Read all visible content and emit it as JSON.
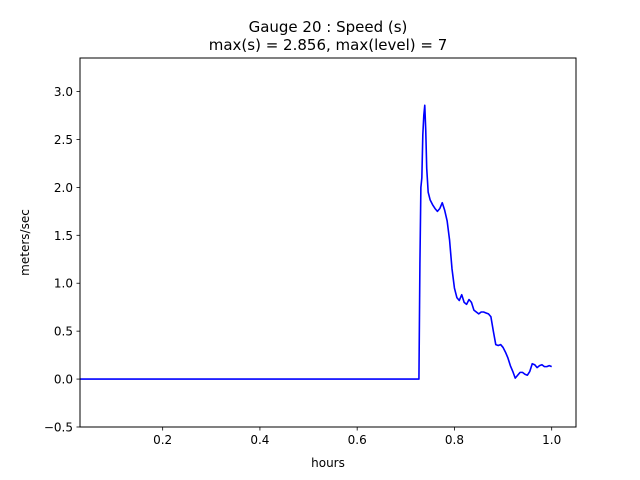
{
  "chart_data": {
    "type": "line",
    "title_line1": "Gauge 20 : Speed (s)",
    "title_line2": "max(s) =   2.856,    max(level) = 7",
    "xlabel": "hours",
    "ylabel": "meters/sec",
    "xlim": [
      0.03,
      1.05
    ],
    "ylim": [
      -0.5,
      3.35
    ],
    "xticks": [
      0.2,
      0.4,
      0.6,
      0.8,
      1.0
    ],
    "xtick_labels": [
      "0.2",
      "0.4",
      "0.6",
      "0.8",
      "1.0"
    ],
    "yticks": [
      -0.5,
      0.0,
      0.5,
      1.0,
      1.5,
      2.0,
      2.5,
      3.0
    ],
    "ytick_labels": [
      "−0.5",
      "0.0",
      "0.5",
      "1.0",
      "1.5",
      "2.0",
      "2.5",
      "3.0"
    ],
    "grid": false,
    "legend": "none",
    "series": [
      {
        "color": "#0000ff",
        "x": [
          0.03,
          0.2,
          0.4,
          0.6,
          0.727,
          0.729,
          0.731,
          0.733,
          0.735,
          0.737,
          0.739,
          0.741,
          0.743,
          0.746,
          0.75,
          0.755,
          0.76,
          0.765,
          0.77,
          0.775,
          0.78,
          0.785,
          0.79,
          0.795,
          0.8,
          0.805,
          0.81,
          0.815,
          0.82,
          0.825,
          0.83,
          0.835,
          0.84,
          0.845,
          0.85,
          0.855,
          0.86,
          0.865,
          0.87,
          0.875,
          0.88,
          0.885,
          0.89,
          0.895,
          0.9,
          0.905,
          0.91,
          0.915,
          0.92,
          0.925,
          0.93,
          0.935,
          0.94,
          0.945,
          0.95,
          0.955,
          0.96,
          0.965,
          0.97,
          0.975,
          0.98,
          0.985,
          0.99,
          0.995,
          1.0
        ],
        "y": [
          0.0,
          0.0,
          0.0,
          0.0,
          0.0,
          1.2,
          2.0,
          2.1,
          2.55,
          2.75,
          2.856,
          2.6,
          2.2,
          1.95,
          1.87,
          1.82,
          1.78,
          1.75,
          1.78,
          1.84,
          1.76,
          1.65,
          1.45,
          1.15,
          0.95,
          0.85,
          0.82,
          0.88,
          0.8,
          0.78,
          0.83,
          0.8,
          0.72,
          0.7,
          0.68,
          0.7,
          0.7,
          0.69,
          0.68,
          0.65,
          0.5,
          0.36,
          0.35,
          0.36,
          0.33,
          0.28,
          0.22,
          0.14,
          0.08,
          0.01,
          0.04,
          0.07,
          0.07,
          0.05,
          0.04,
          0.08,
          0.16,
          0.15,
          0.12,
          0.14,
          0.15,
          0.13,
          0.13,
          0.14,
          0.13
        ]
      }
    ]
  }
}
